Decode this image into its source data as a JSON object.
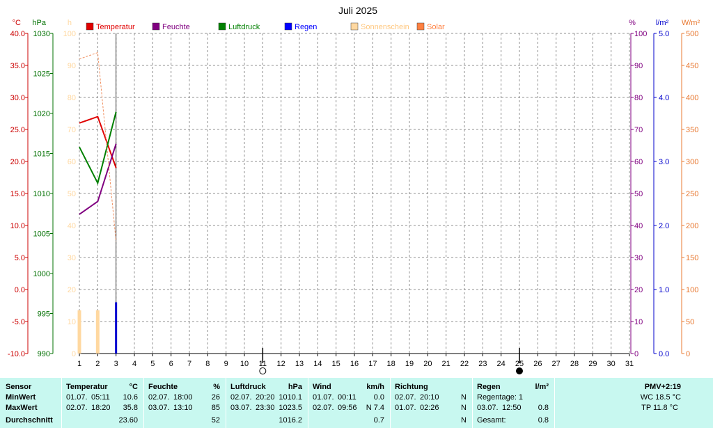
{
  "chart_data": {
    "type": "line",
    "title": "Juli 2025",
    "x": [
      1,
      2,
      3,
      4,
      5,
      6,
      7,
      8,
      9,
      10,
      11,
      12,
      13,
      14,
      15,
      16,
      17,
      18,
      19,
      20,
      21,
      22,
      23,
      24,
      25,
      26,
      27,
      28,
      29,
      30,
      31
    ],
    "xlim": [
      1,
      31
    ],
    "grid": true,
    "legend_position": "top",
    "axes": {
      "temperature": {
        "unit": "°C",
        "range": [
          -10,
          40
        ],
        "ticks": [
          "40.0",
          "35.0",
          "30.0",
          "25.0",
          "20.0",
          "15.0",
          "10.0",
          "5.0",
          "0.0",
          "-5.0",
          "-10.0"
        ],
        "color": "#cc0000"
      },
      "pressure": {
        "unit": "hPa",
        "range": [
          990,
          1030
        ],
        "ticks": [
          "1030",
          "1025",
          "1020",
          "1015",
          "1010",
          "1005",
          "1000",
          "995",
          "990"
        ],
        "color": "#007000"
      },
      "sunshine": {
        "unit": "h",
        "range": [
          0,
          100
        ],
        "ticks": [
          "100",
          "90",
          "80",
          "70",
          "60",
          "50",
          "40",
          "30",
          "20",
          "10",
          "0"
        ],
        "color": "#ffd8a0"
      },
      "humidity": {
        "unit": "%",
        "range": [
          0,
          100
        ],
        "ticks": [
          "100",
          "90",
          "80",
          "70",
          "60",
          "50",
          "40",
          "30",
          "20",
          "10",
          "0"
        ],
        "color": "#800080"
      },
      "rain": {
        "unit": "l/m²",
        "range": [
          0,
          5
        ],
        "ticks": [
          "5.0",
          "4.0",
          "3.0",
          "2.0",
          "1.0",
          "0.0"
        ],
        "color": "#0000cc"
      },
      "solar": {
        "unit": "W/m²",
        "range": [
          0,
          500
        ],
        "ticks": [
          "500",
          "450",
          "400",
          "350",
          "300",
          "250",
          "200",
          "150",
          "100",
          "50",
          "0"
        ],
        "color": "#e87830"
      }
    },
    "legend": [
      {
        "name": "Temperatur",
        "color": "#e00000"
      },
      {
        "name": "Feuchte",
        "color": "#800080"
      },
      {
        "name": "Luftdruck",
        "color": "#008000"
      },
      {
        "name": "Regen",
        "color": "#0000ff"
      },
      {
        "name": "Sonnenschein",
        "color": "#ffd8a0"
      },
      {
        "name": "Solar",
        "color": "#ff8040"
      }
    ],
    "series": [
      {
        "key": "temperature",
        "axis": "temperature",
        "color": "#e00000",
        "points": [
          [
            1,
            26.0
          ],
          [
            2,
            27.0
          ],
          [
            3,
            19.0
          ]
        ]
      },
      {
        "key": "humidity",
        "axis": "humidity",
        "color": "#800080",
        "points": [
          [
            1,
            43.5
          ],
          [
            2,
            47.5
          ],
          [
            3,
            65.5
          ]
        ]
      },
      {
        "key": "pressure",
        "axis": "pressure",
        "color": "#008000",
        "points": [
          [
            1,
            1015.8
          ],
          [
            2,
            1011.3
          ],
          [
            3,
            1020.2
          ]
        ]
      },
      {
        "key": "solar",
        "axis": "solar",
        "color": "#f09060",
        "dashed": true,
        "points": [
          [
            1,
            460
          ],
          [
            2,
            470
          ],
          [
            3,
            175
          ]
        ]
      }
    ],
    "bars": [
      {
        "key": "sunshine",
        "axis": "sunshine",
        "color": "#ffd8a0",
        "points": [
          [
            1,
            13.5
          ],
          [
            2,
            13.5
          ]
        ]
      },
      {
        "key": "rain",
        "axis": "rain",
        "color": "#0000d0",
        "points": [
          [
            3,
            0.8
          ]
        ]
      }
    ],
    "current_day_marker": 3,
    "moon": [
      {
        "day": 11,
        "phase": "full"
      },
      {
        "day": 25,
        "phase": "new"
      }
    ]
  },
  "stats": {
    "sensor": {
      "header": "Sensor",
      "rows": [
        "MinWert",
        "MaxWert",
        "Durchschnitt"
      ]
    },
    "temperature": {
      "header": "Temperatur",
      "unit": "°C",
      "min": {
        "date": "01.07.",
        "time": "05:11",
        "value": "10.6"
      },
      "max": {
        "date": "02.07.",
        "time": "18:20",
        "value": "35.8"
      },
      "avg": "23.60"
    },
    "humidity": {
      "header": "Feuchte",
      "unit": "%",
      "min": {
        "date": "02.07.",
        "time": "18:00",
        "value": "26"
      },
      "max": {
        "date": "03.07.",
        "time": "13:10",
        "value": "85"
      },
      "avg": "52"
    },
    "pressure": {
      "header": "Luftdruck",
      "unit": "hPa",
      "min": {
        "date": "02.07.",
        "time": "20:20",
        "value": "1010.1"
      },
      "max": {
        "date": "03.07.",
        "time": "23:30",
        "value": "1023.5"
      },
      "avg": "1016.2"
    },
    "wind": {
      "header": "Wind",
      "unit": "km/h",
      "min": {
        "date": "01.07.",
        "time": "00:11",
        "value": "0.0"
      },
      "max": {
        "date": "02.07.",
        "time": "09:56",
        "value": "N 7.4"
      },
      "avg": "0.7"
    },
    "direction": {
      "header": "Richtung",
      "min": {
        "date": "02.07.",
        "time": "20:10",
        "value": "N"
      },
      "max": {
        "date": "01.07.",
        "time": "02:26",
        "value": "N"
      },
      "avg": "N"
    },
    "rain": {
      "header": "Regen",
      "unit": "l/m²",
      "days": "Regentage: 1",
      "max": {
        "date": "03.07.",
        "time": "12:50",
        "value": "0.8"
      },
      "total_label": "Gesamt:",
      "total": "0.8"
    },
    "pmv": {
      "header": "PMV+2:19",
      "wc": "WC 18.5 °C",
      "tp": "TP 11.8 °C"
    }
  }
}
